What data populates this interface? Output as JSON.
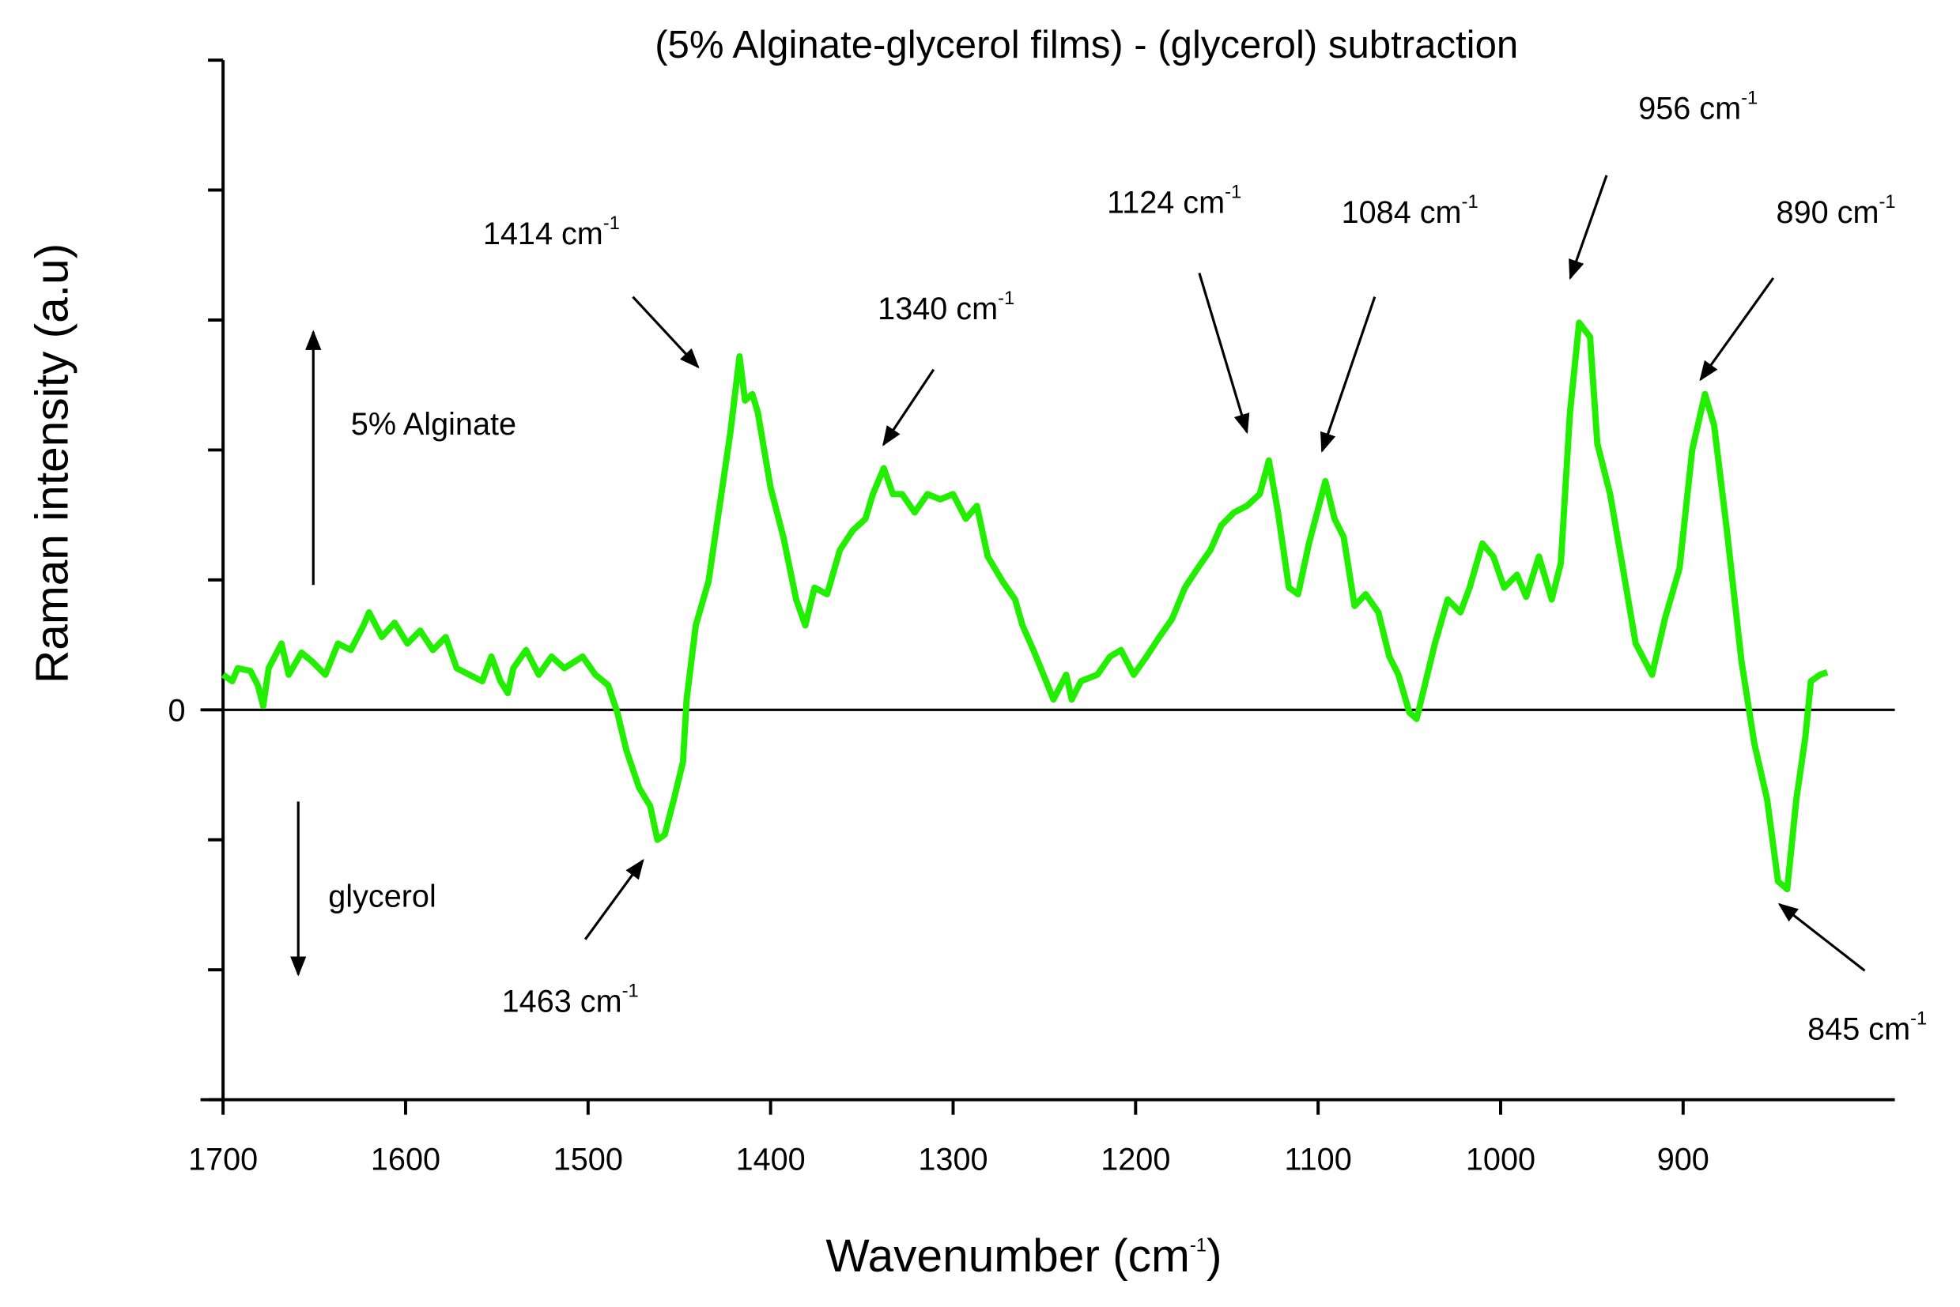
{
  "chart_data": {
    "type": "line",
    "title": "(5% Alginate-glycerol films) - (glycerol) subtraction",
    "xlabel": [
      "Wavenumber (cm",
      "-1",
      ")"
    ],
    "ylabel": "Raman intensity (a.u)",
    "xlim": [
      1700,
      784
    ],
    "ylim": [
      -3,
      5
    ],
    "xticks": [
      1700,
      1600,
      1500,
      1400,
      1300,
      1200,
      1100,
      1000,
      900
    ],
    "yticks": [
      0
    ],
    "y_minor_ticks": [
      -3,
      -2,
      -1,
      1,
      2,
      3,
      4,
      5
    ],
    "zero_line": true,
    "side_labels": [
      "5% Alginate",
      "glycerol"
    ],
    "annotations": [
      {
        "text": "1414 cm",
        "sup": "-1"
      },
      {
        "text": "1340 cm",
        "sup": "-1"
      },
      {
        "text": "1124 cm",
        "sup": "-1"
      },
      {
        "text": "1084 cm",
        "sup": "-1"
      },
      {
        "text": "956 cm",
        "sup": "-1"
      },
      {
        "text": "890 cm",
        "sup": "-1"
      },
      {
        "text": "1463 cm",
        "sup": "-1"
      },
      {
        "text": "845 cm",
        "sup": "-1"
      }
    ],
    "series": [
      {
        "color": "#22ee00",
        "x": [
          1700,
          1695,
          1692,
          1685,
          1681,
          1678,
          1675,
          1668,
          1664,
          1657,
          1651,
          1644,
          1637,
          1630,
          1623,
          1620,
          1613,
          1606,
          1599,
          1592,
          1585,
          1578,
          1572,
          1565,
          1558,
          1553,
          1548,
          1544,
          1541,
          1534,
          1527,
          1520,
          1513,
          1503,
          1496,
          1489,
          1484,
          1479,
          1472,
          1466,
          1462,
          1458,
          1453,
          1448,
          1446,
          1441,
          1434,
          1427,
          1422,
          1417,
          1414,
          1410,
          1407,
          1400,
          1393,
          1386,
          1381,
          1376,
          1369,
          1362,
          1355,
          1348,
          1344,
          1338,
          1333,
          1328,
          1321,
          1314,
          1307,
          1300,
          1293,
          1287,
          1281,
          1273,
          1266,
          1262,
          1256,
          1249,
          1245,
          1238,
          1235,
          1230,
          1221,
          1214,
          1208,
          1201,
          1194,
          1187,
          1180,
          1173,
          1166,
          1159,
          1153,
          1146,
          1139,
          1132,
          1127,
          1122,
          1116,
          1111,
          1105,
          1096,
          1091,
          1086,
          1080,
          1074,
          1067,
          1061,
          1056,
          1050,
          1046,
          1041,
          1036,
          1029,
          1022,
          1017,
          1010,
          1004,
          998,
          991,
          986,
          979,
          972,
          967,
          962,
          957,
          951,
          947,
          940,
          933,
          926,
          917,
          910,
          902,
          895,
          888,
          883,
          876,
          868,
          861,
          854,
          848,
          843,
          838,
          833,
          830,
          825,
          821
        ],
        "values": [
          0.27,
          0.22,
          0.32,
          0.3,
          0.19,
          0.03,
          0.32,
          0.51,
          0.27,
          0.44,
          0.37,
          0.27,
          0.51,
          0.46,
          0.65,
          0.75,
          0.56,
          0.67,
          0.51,
          0.61,
          0.46,
          0.56,
          0.32,
          0.27,
          0.22,
          0.41,
          0.22,
          0.13,
          0.32,
          0.46,
          0.27,
          0.41,
          0.32,
          0.41,
          0.27,
          0.19,
          -0.02,
          -0.31,
          -0.6,
          -0.74,
          -1.0,
          -0.96,
          -0.69,
          -0.4,
          0.08,
          0.65,
          0.99,
          1.66,
          2.14,
          2.72,
          2.38,
          2.43,
          2.29,
          1.71,
          1.33,
          0.85,
          0.65,
          0.94,
          0.89,
          1.23,
          1.38,
          1.47,
          1.66,
          1.86,
          1.66,
          1.66,
          1.52,
          1.66,
          1.62,
          1.66,
          1.47,
          1.57,
          1.18,
          0.99,
          0.85,
          0.65,
          0.46,
          0.22,
          0.08,
          0.27,
          0.08,
          0.22,
          0.27,
          0.41,
          0.46,
          0.27,
          0.41,
          0.56,
          0.7,
          0.94,
          1.09,
          1.23,
          1.42,
          1.52,
          1.57,
          1.66,
          1.92,
          1.52,
          0.94,
          0.89,
          1.28,
          1.76,
          1.47,
          1.33,
          0.8,
          0.89,
          0.75,
          0.41,
          0.27,
          -0.02,
          -0.07,
          0.22,
          0.51,
          0.85,
          0.75,
          0.94,
          1.28,
          1.18,
          0.94,
          1.04,
          0.87,
          1.18,
          0.85,
          1.13,
          2.29,
          2.98,
          2.87,
          2.05,
          1.66,
          1.09,
          0.51,
          0.27,
          0.7,
          1.09,
          2.0,
          2.43,
          2.19,
          1.38,
          0.37,
          -0.26,
          -0.69,
          -1.32,
          -1.38,
          -0.69,
          -0.21,
          0.22,
          0.27,
          0.29
        ]
      }
    ]
  }
}
